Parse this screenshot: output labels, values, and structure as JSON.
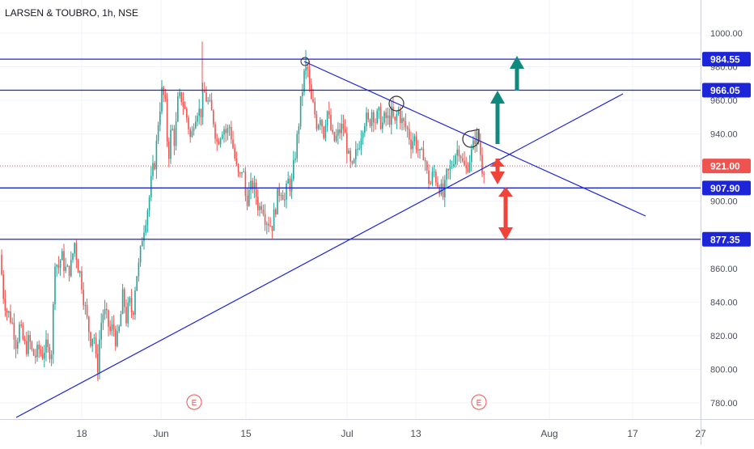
{
  "symbol_header": "LARSEN & TOUBRO, 1h, NSE",
  "colors": {
    "up": "#26a69a",
    "down": "#ef5350",
    "line": "#1c25d8",
    "label_bg": "#1c25d8",
    "price_line": "#ef5350",
    "grid": "#f0f3fa",
    "axis_text": "#4a4e5a",
    "arrow_up": "#108a7c",
    "arrow_down": "#f0433a"
  },
  "chart_data": {
    "type": "candlestick",
    "title": "LARSEN & TOUBRO, 1h, NSE",
    "x_tick_labels": [
      "18",
      "Jun",
      "15",
      "Jul",
      "13",
      "Aug",
      "17",
      "27"
    ],
    "y_ticks": [
      780,
      800,
      820,
      840,
      860,
      880,
      900,
      920,
      940,
      960,
      980,
      1000
    ],
    "y_tick_labels": [
      "780.00",
      "800.00",
      "820.00",
      "840.00",
      "860.00",
      "880.00",
      "900.00",
      "920.00",
      "940.00",
      "960.00",
      "980.00",
      "1000.00"
    ],
    "ylim": [
      771,
      1017
    ],
    "grid": true,
    "horizontal_levels": [
      {
        "value": 984.55,
        "label": "984.55"
      },
      {
        "value": 966.05,
        "label": "966.05"
      },
      {
        "value": 907.9,
        "label": "907.90"
      },
      {
        "value": 877.35,
        "label": "877.35"
      }
    ],
    "last_price": {
      "value": 921.0,
      "label": "921.00"
    },
    "price_path": [
      [
        0,
        868
      ],
      [
        4,
        845
      ],
      [
        8,
        835
      ],
      [
        12,
        832
      ],
      [
        16,
        826
      ],
      [
        20,
        815
      ],
      [
        24,
        825
      ],
      [
        28,
        818
      ],
      [
        32,
        812
      ],
      [
        36,
        818
      ],
      [
        40,
        809
      ],
      [
        44,
        808
      ],
      [
        48,
        812
      ],
      [
        52,
        808
      ],
      [
        56,
        814
      ],
      [
        60,
        810
      ],
      [
        64,
        812
      ],
      [
        68,
        866
      ],
      [
        72,
        860
      ],
      [
        76,
        868
      ],
      [
        80,
        860
      ],
      [
        84,
        858
      ],
      [
        88,
        862
      ],
      [
        92,
        876
      ],
      [
        96,
        862
      ],
      [
        100,
        855
      ],
      [
        104,
        840
      ],
      [
        108,
        828
      ],
      [
        112,
        818
      ],
      [
        116,
        822
      ],
      [
        120,
        796
      ],
      [
        124,
        825
      ],
      [
        128,
        835
      ],
      [
        132,
        830
      ],
      [
        136,
        822
      ],
      [
        140,
        826
      ],
      [
        144,
        815
      ],
      [
        148,
        826
      ],
      [
        152,
        845
      ],
      [
        156,
        830
      ],
      [
        160,
        840
      ],
      [
        164,
        832
      ],
      [
        168,
        855
      ],
      [
        172,
        862
      ],
      [
        176,
        880
      ],
      [
        180,
        890
      ],
      [
        184,
        900
      ],
      [
        188,
        916
      ],
      [
        192,
        925
      ],
      [
        196,
        950
      ],
      [
        200,
        965
      ],
      [
        204,
        960
      ],
      [
        208,
        925
      ],
      [
        212,
        945
      ],
      [
        216,
        935
      ],
      [
        220,
        960
      ],
      [
        224,
        962
      ],
      [
        228,
        955
      ],
      [
        232,
        948
      ],
      [
        236,
        935
      ],
      [
        240,
        950
      ],
      [
        244,
        955
      ],
      [
        248,
        952
      ],
      [
        252,
        965
      ],
      [
        256,
        960
      ],
      [
        260,
        955
      ],
      [
        264,
        948
      ],
      [
        268,
        935
      ],
      [
        272,
        940
      ],
      [
        276,
        945
      ],
      [
        280,
        940
      ],
      [
        284,
        945
      ],
      [
        288,
        932
      ],
      [
        292,
        920
      ],
      [
        296,
        912
      ],
      [
        300,
        922
      ],
      [
        304,
        900
      ],
      [
        308,
        905
      ],
      [
        312,
        910
      ],
      [
        316,
        905
      ],
      [
        320,
        895
      ],
      [
        324,
        900
      ],
      [
        328,
        890
      ],
      [
        332,
        888
      ],
      [
        336,
        885
      ],
      [
        340,
        895
      ],
      [
        344,
        905
      ],
      [
        348,
        908
      ],
      [
        352,
        900
      ],
      [
        356,
        912
      ],
      [
        360,
        908
      ],
      [
        364,
        925
      ],
      [
        368,
        940
      ],
      [
        372,
        960
      ],
      [
        376,
        975
      ],
      [
        380,
        980
      ],
      [
        384,
        960
      ],
      [
        388,
        955
      ],
      [
        392,
        945
      ],
      [
        396,
        952
      ],
      [
        400,
        940
      ],
      [
        404,
        955
      ],
      [
        408,
        945
      ],
      [
        412,
        935
      ],
      [
        416,
        938
      ],
      [
        420,
        942
      ],
      [
        424,
        945
      ],
      [
        428,
        935
      ],
      [
        432,
        922
      ],
      [
        436,
        918
      ],
      [
        440,
        928
      ],
      [
        444,
        935
      ],
      [
        448,
        945
      ],
      [
        452,
        950
      ],
      [
        456,
        945
      ],
      [
        460,
        955
      ],
      [
        464,
        948
      ],
      [
        468,
        952
      ],
      [
        472,
        945
      ],
      [
        476,
        950
      ],
      [
        480,
        948
      ],
      [
        484,
        952
      ],
      [
        488,
        945
      ],
      [
        492,
        955
      ],
      [
        496,
        948
      ],
      [
        500,
        945
      ],
      [
        504,
        942
      ],
      [
        508,
        935
      ],
      [
        512,
        938
      ],
      [
        516,
        932
      ],
      [
        520,
        925
      ],
      [
        524,
        930
      ],
      [
        528,
        915
      ],
      [
        532,
        910
      ],
      [
        536,
        918
      ],
      [
        540,
        912
      ],
      [
        544,
        908
      ],
      [
        548,
        902
      ],
      [
        552,
        915
      ],
      [
        556,
        918
      ],
      [
        560,
        925
      ],
      [
        564,
        930
      ],
      [
        568,
        932
      ],
      [
        572,
        922
      ],
      [
        576,
        918
      ],
      [
        580,
        925
      ],
      [
        584,
        930
      ],
      [
        588,
        940
      ],
      [
        592,
        935
      ],
      [
        596,
        920
      ],
      [
        600,
        921
      ]
    ],
    "annotations": {
      "earnings_markers": [
        "E",
        "E"
      ]
    }
  }
}
